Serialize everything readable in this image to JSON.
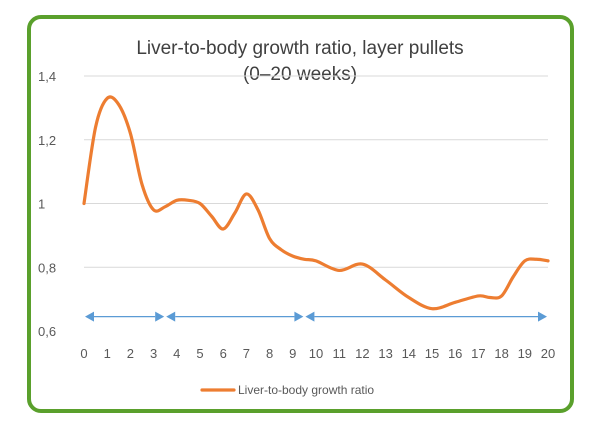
{
  "chart_data": {
    "type": "line",
    "title_line1": "Liver-to-body growth ratio, layer pullets",
    "title_line2": "(0–20 weeks)",
    "xlabel": "",
    "ylabel": "",
    "ylim": [
      0.6,
      1.4
    ],
    "yticks": [
      "0,6",
      "0,8",
      "1",
      "1,2",
      "1,4"
    ],
    "ytick_values": [
      0.6,
      0.8,
      1.0,
      1.2,
      1.4
    ],
    "categories": [
      "0",
      "1",
      "2",
      "3",
      "4",
      "5",
      "6",
      "7",
      "8",
      "9",
      "10",
      "11",
      "12",
      "13",
      "14",
      "15",
      "16",
      "17",
      "18",
      "19",
      "20"
    ],
    "series": [
      {
        "name": "Liver-to-body growth ratio",
        "color": "#ed7d31",
        "x": [
          0,
          0.5,
          1,
          1.5,
          2,
          2.5,
          3,
          3.5,
          4,
          4.5,
          5,
          5.5,
          6,
          6.5,
          7,
          7.5,
          8,
          8.5,
          9,
          9.5,
          10,
          11,
          12,
          13,
          14,
          15,
          16,
          17,
          17.5,
          18,
          18.5,
          19,
          19.5,
          20
        ],
        "values": [
          1.0,
          1.24,
          1.33,
          1.31,
          1.22,
          1.06,
          0.98,
          0.99,
          1.01,
          1.01,
          1.0,
          0.96,
          0.92,
          0.97,
          1.03,
          0.98,
          0.89,
          0.855,
          0.835,
          0.825,
          0.82,
          0.79,
          0.81,
          0.76,
          0.705,
          0.67,
          0.69,
          0.71,
          0.705,
          0.71,
          0.77,
          0.82,
          0.825,
          0.82
        ]
      }
    ],
    "grid": true,
    "legend": "bottom",
    "annotations": {
      "type": "double-arrows",
      "color": "#5b9bd5",
      "y": 0.645,
      "segments": [
        [
          0,
          3.5
        ],
        [
          3.5,
          9.5
        ],
        [
          9.5,
          20
        ]
      ]
    }
  },
  "colors": {
    "frame": "#5aa02c",
    "grid": "#d9d9d9",
    "series": "#ed7d31",
    "arrows": "#5b9bd5"
  }
}
